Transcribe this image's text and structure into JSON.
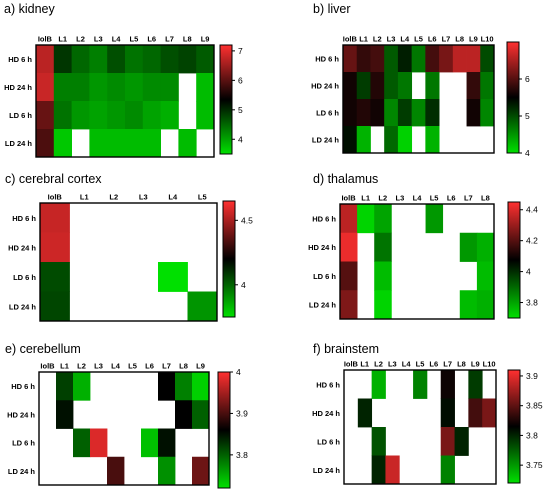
{
  "colors": {
    "low": "#00e000",
    "mid": "#000000",
    "high": "#ff3030",
    "empty": "#ffffff",
    "border": "#000000"
  },
  "rows": [
    "HD 6 h",
    "HD 24 h",
    "LD 6 h",
    "LD 24 h"
  ],
  "chart_data": [
    {
      "type": "heatmap",
      "title": "a)  kidney",
      "columns": [
        "IolB",
        "L1",
        "L2",
        "L3",
        "L4",
        "L5",
        "L6",
        "L7",
        "L8",
        "L9"
      ],
      "vmin": 3.5,
      "vmax": 7.2,
      "colorbar_ticks": [
        7,
        6,
        5,
        4
      ],
      "values": [
        [
          6.7,
          4.9,
          4.5,
          4.3,
          4.7,
          4.4,
          4.5,
          4.7,
          4.8,
          4.6
        ],
        [
          6.8,
          4.3,
          4.3,
          4.1,
          4.2,
          4.1,
          4.2,
          4.2,
          null,
          3.8
        ],
        [
          6.1,
          4.4,
          4.1,
          4.0,
          4.1,
          4.2,
          4.0,
          3.9,
          null,
          3.8
        ],
        [
          5.9,
          3.7,
          null,
          3.8,
          3.8,
          3.8,
          3.8,
          null,
          3.8,
          null
        ]
      ]
    },
    {
      "type": "heatmap",
      "title": "b)  liver",
      "columns": [
        "IolB",
        "L1",
        "L2",
        "L3",
        "L4",
        "L5",
        "L6",
        "L7",
        "L8",
        "L9",
        "L10"
      ],
      "vmin": 4.0,
      "vmax": 7.0,
      "colorbar_ticks": [
        6,
        5,
        4
      ],
      "values": [
        [
          6.1,
          5.8,
          5.9,
          4.9,
          5.3,
          4.7,
          5.9,
          6.2,
          6.6,
          6.6,
          5.0
        ],
        [
          5.6,
          5.1,
          5.7,
          4.9,
          4.7,
          null,
          4.7,
          null,
          null,
          5.8,
          4.7
        ],
        [
          5.6,
          5.7,
          5.6,
          4.6,
          5.1,
          4.6,
          5.2,
          null,
          null,
          5.6,
          4.6
        ],
        [
          5.4,
          4.3,
          null,
          4.8,
          4.1,
          null,
          4.3,
          null,
          null,
          null,
          null
        ]
      ]
    },
    {
      "type": "heatmap",
      "title": "c)  cerebral cortex",
      "columns": [
        "IolB",
        "L1",
        "L2",
        "L3",
        "L4",
        "L5"
      ],
      "vmin": 3.75,
      "vmax": 4.65,
      "colorbar_ticks": [
        4.5,
        4.0
      ],
      "values": [
        [
          4.55,
          null,
          null,
          null,
          null,
          null
        ],
        [
          4.56,
          null,
          null,
          null,
          null,
          null
        ],
        [
          4.05,
          null,
          null,
          null,
          3.75,
          null
        ],
        [
          4.06,
          null,
          null,
          null,
          null,
          3.9
        ]
      ]
    },
    {
      "type": "heatmap",
      "title": "d)  thalamus",
      "columns": [
        "IolB",
        "L1",
        "L2",
        "L3",
        "L4",
        "L5",
        "L6",
        "L7",
        "L8"
      ],
      "vmin": 3.7,
      "vmax": 4.45,
      "colorbar_ticks": [
        4.4,
        4.2,
        4.0,
        3.8
      ],
      "values": [
        [
          4.35,
          3.72,
          3.8,
          null,
          null,
          3.82,
          null,
          null,
          null
        ],
        [
          4.42,
          null,
          3.88,
          null,
          null,
          null,
          null,
          3.82,
          3.78
        ],
        [
          4.2,
          null,
          3.76,
          null,
          null,
          null,
          null,
          null,
          3.76
        ],
        [
          4.26,
          null,
          3.72,
          null,
          null,
          null,
          null,
          3.76,
          3.78
        ]
      ]
    },
    {
      "type": "heatmap",
      "title": "e)  cerebellum",
      "columns": [
        "IolB",
        "L1",
        "L2",
        "L3",
        "L4",
        "L5",
        "L6",
        "L7",
        "L8",
        "L9"
      ],
      "vmin": 3.72,
      "vmax": 4.0,
      "colorbar_ticks": [
        4.0,
        3.9,
        3.8
      ],
      "values": [
        [
          null,
          3.82,
          3.75,
          null,
          null,
          null,
          null,
          3.86,
          3.78,
          3.73
        ],
        [
          null,
          3.85,
          null,
          null,
          null,
          null,
          null,
          null,
          3.86,
          3.8
        ],
        [
          null,
          null,
          3.8,
          3.98,
          null,
          null,
          3.74,
          3.85,
          null,
          null
        ],
        [
          null,
          null,
          null,
          null,
          3.9,
          null,
          null,
          3.77,
          null,
          3.92
        ]
      ]
    },
    {
      "type": "heatmap",
      "title": "f)  brainstem",
      "columns": [
        "IolB",
        "L1",
        "L2",
        "L3",
        "L4",
        "L5",
        "L6",
        "L7",
        "L8",
        "L9",
        "L10"
      ],
      "vmin": 3.72,
      "vmax": 3.91,
      "colorbar_ticks": [
        3.9,
        3.85,
        3.8,
        3.75
      ],
      "values": [
        [
          null,
          null,
          3.74,
          null,
          null,
          3.76,
          null,
          3.82,
          null,
          3.79,
          null
        ],
        [
          null,
          3.8,
          null,
          null,
          null,
          null,
          null,
          3.81,
          null,
          3.84,
          3.86
        ],
        [
          null,
          null,
          3.78,
          null,
          null,
          null,
          null,
          3.86,
          3.8,
          null,
          null
        ],
        [
          null,
          null,
          3.8,
          3.89,
          null,
          null,
          null,
          3.76,
          null,
          null,
          null
        ]
      ]
    }
  ]
}
